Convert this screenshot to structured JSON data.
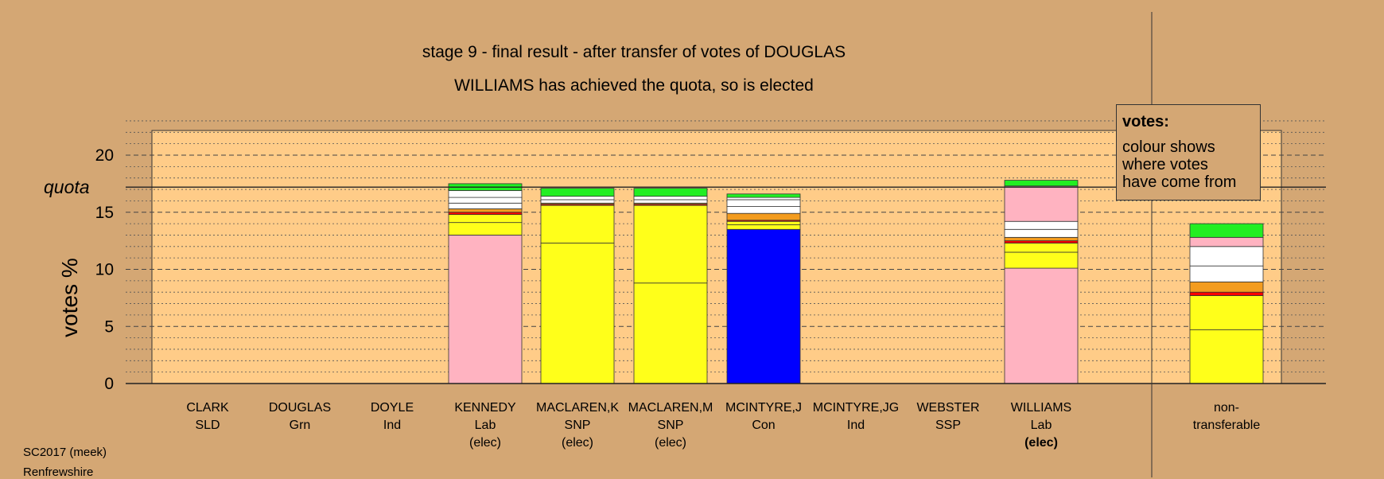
{
  "chart_data": {
    "type": "bar",
    "stacked": true,
    "title": "stage 9 - final result - after transfer of votes of DOUGLAS",
    "subtitle": "WILLIAMS has achieved the quota, so is elected",
    "ylabel": "votes %",
    "ylim": [
      0,
      22
    ],
    "yticks": [
      0,
      5,
      10,
      15,
      20
    ],
    "quota": 17.2,
    "quota_label": "quota",
    "grid": true,
    "legend": {
      "title": "votes:",
      "body": "colour shows\nwhere votes\nhave come from",
      "placement": "top-right"
    },
    "candidates": [
      {
        "name": "CLARK",
        "party": "SLD",
        "status": "",
        "segments": []
      },
      {
        "name": "DOUGLAS",
        "party": "Grn",
        "status": "",
        "segments": []
      },
      {
        "name": "DOYLE",
        "party": "Ind",
        "status": "",
        "segments": []
      },
      {
        "name": "KENNEDY",
        "party": "Lab",
        "status": "(elec)",
        "segments": [
          {
            "color": "#ffb3c1",
            "value": 13.0
          },
          {
            "color": "#ffff1a",
            "value": 1.1
          },
          {
            "color": "#ffff1a",
            "value": 0.7
          },
          {
            "color": "#ff0000",
            "value": 0.2
          },
          {
            "color": "#f39c1f",
            "value": 0.3
          },
          {
            "color": "#ffffff",
            "value": 0.5
          },
          {
            "color": "#ffffff",
            "value": 0.5
          },
          {
            "color": "#ffffff",
            "value": 0.6
          },
          {
            "color": "#22ee22",
            "value": 0.6
          }
        ]
      },
      {
        "name": "MACLAREN,K",
        "party": "SNP",
        "status": "(elec)",
        "segments": [
          {
            "color": "#ffff1a",
            "value": 12.3
          },
          {
            "color": "#ffff1a",
            "value": 3.3
          },
          {
            "color": "#ff0000",
            "value": 0.1
          },
          {
            "color": "#f39c1f",
            "value": 0.1
          },
          {
            "color": "#ffffff",
            "value": 0.3
          },
          {
            "color": "#ffffff",
            "value": 0.3
          },
          {
            "color": "#22ee22",
            "value": 0.7
          }
        ]
      },
      {
        "name": "MACLAREN,M",
        "party": "SNP",
        "status": "(elec)",
        "segments": [
          {
            "color": "#ffff1a",
            "value": 8.8
          },
          {
            "color": "#ffff1a",
            "value": 6.8
          },
          {
            "color": "#ff0000",
            "value": 0.1
          },
          {
            "color": "#f39c1f",
            "value": 0.1
          },
          {
            "color": "#ffffff",
            "value": 0.3
          },
          {
            "color": "#ffffff",
            "value": 0.3
          },
          {
            "color": "#22ee22",
            "value": 0.7
          }
        ]
      },
      {
        "name": "MCINTYRE,J",
        "party": "Con",
        "status": "",
        "segments": [
          {
            "color": "#0000ff",
            "value": 13.5
          },
          {
            "color": "#ffff1a",
            "value": 0.4
          },
          {
            "color": "#ffff1a",
            "value": 0.3
          },
          {
            "color": "#ff0000",
            "value": 0.1
          },
          {
            "color": "#f39c1f",
            "value": 0.6
          },
          {
            "color": "#ffffff",
            "value": 0.6
          },
          {
            "color": "#ffffff",
            "value": 0.6
          },
          {
            "color": "#ffffff",
            "value": 0.2
          },
          {
            "color": "#22ee22",
            "value": 0.3
          }
        ]
      },
      {
        "name": "MCINTYRE,JG",
        "party": "Ind",
        "status": "",
        "segments": []
      },
      {
        "name": "WEBSTER",
        "party": "SSP",
        "status": "",
        "segments": []
      },
      {
        "name": "WILLIAMS",
        "party": "Lab",
        "status": "(elec)",
        "status_bold": true,
        "segments": [
          {
            "color": "#ffb3c1",
            "value": 10.1
          },
          {
            "color": "#ffff1a",
            "value": 1.4
          },
          {
            "color": "#ffff1a",
            "value": 0.8
          },
          {
            "color": "#ff0000",
            "value": 0.2
          },
          {
            "color": "#f39c1f",
            "value": 0.3
          },
          {
            "color": "#ffffff",
            "value": 0.7
          },
          {
            "color": "#ffffff",
            "value": 0.7
          },
          {
            "color": "#ffb3c1",
            "value": 3.1
          },
          {
            "color": "#22ee22",
            "value": 0.5
          }
        ]
      },
      {
        "name": "non-",
        "party": "transferable",
        "status": "",
        "segments": [
          {
            "color": "#ffff1a",
            "value": 4.7
          },
          {
            "color": "#ffff1a",
            "value": 3.0
          },
          {
            "color": "#ff0000",
            "value": 0.3
          },
          {
            "color": "#f39c1f",
            "value": 0.9
          },
          {
            "color": "#ffffff",
            "value": 1.4
          },
          {
            "color": "#ffffff",
            "value": 1.7
          },
          {
            "color": "#ffb3c1",
            "value": 0.8
          },
          {
            "color": "#22ee22",
            "value": 1.2
          }
        ]
      }
    ]
  },
  "footer": {
    "line1": "SC2017 (meek)",
    "line2": "Renfrewshire"
  },
  "colors": {
    "background": "#d4a774",
    "plot_background": "#ffcc88"
  }
}
